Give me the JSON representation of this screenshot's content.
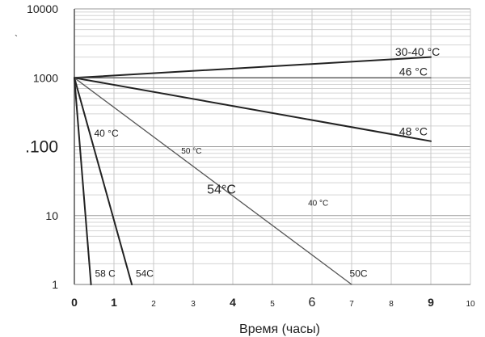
{
  "chart_data": {
    "type": "line",
    "xlabel": "Время (часы)",
    "x_ticks": [
      {
        "value": 0,
        "label": "0",
        "style": "bold"
      },
      {
        "value": 1,
        "label": "1",
        "style": "bold"
      },
      {
        "value": 2,
        "label": "2",
        "style": "small"
      },
      {
        "value": 3,
        "label": "3",
        "style": "small"
      },
      {
        "value": 4,
        "label": "4",
        "style": "bold"
      },
      {
        "value": 5,
        "label": "5",
        "style": "small"
      },
      {
        "value": 6,
        "label": "6",
        "style": "large"
      },
      {
        "value": 7,
        "label": "7",
        "style": "small"
      },
      {
        "value": 8,
        "label": "8",
        "style": "small"
      },
      {
        "value": 9,
        "label": "9",
        "style": "bold"
      },
      {
        "value": 10,
        "label": "10",
        "style": "small"
      }
    ],
    "y_scale": "log",
    "y_ticks": [
      {
        "value": 1,
        "label": "1",
        "style": "small"
      },
      {
        "value": 10,
        "label": "10",
        "style": "small"
      },
      {
        "value": 100,
        "label": ".100",
        "style": "large"
      },
      {
        "value": 1000,
        "label": "1000",
        "style": "small"
      },
      {
        "value": 10000,
        "label": "10000",
        "style": "small"
      }
    ],
    "xlim": [
      0,
      10
    ],
    "ylim": [
      1,
      10000
    ],
    "grid": true,
    "series": [
      {
        "name": "30-40 °C",
        "points": [
          [
            0,
            1000
          ],
          [
            9,
            2000
          ]
        ],
        "color": "#222222",
        "width": 2
      },
      {
        "name": "46 °C",
        "points": [
          [
            0,
            1000
          ],
          [
            9,
            1000
          ]
        ],
        "color": "#555555",
        "width": 1.3
      },
      {
        "name": "48 °C",
        "points": [
          [
            0,
            1000
          ],
          [
            9,
            120
          ]
        ],
        "color": "#222222",
        "width": 2
      },
      {
        "name": "50C",
        "points": [
          [
            0,
            1000
          ],
          [
            7,
            1
          ]
        ],
        "color": "#555555",
        "width": 1.3
      },
      {
        "name": "54C",
        "points": [
          [
            0,
            1000
          ],
          [
            1.45,
            1
          ]
        ],
        "color": "#222222",
        "width": 2
      },
      {
        "name": "58 C",
        "points": [
          [
            0,
            1000
          ],
          [
            0.42,
            1
          ]
        ],
        "color": "#222222",
        "width": 2
      }
    ],
    "annotations": [
      {
        "text": "30-40 °C",
        "at": [
          8.1,
          2100
        ],
        "size": "medium"
      },
      {
        "text": "46 °C",
        "at": [
          8.2,
          1080
        ],
        "size": "medium"
      },
      {
        "text": "48 °C",
        "at": [
          8.2,
          145
        ],
        "size": "medium"
      },
      {
        "text": "40 °C",
        "at": [
          0.5,
          140
        ],
        "size": "small"
      },
      {
        "text": "50 °C",
        "at": [
          2.7,
          80
        ],
        "size": "tiny"
      },
      {
        "text": "54°C",
        "at": [
          3.35,
          21
        ],
        "size": "large"
      },
      {
        "text": "40 °C",
        "at": [
          5.9,
          14
        ],
        "size": "tiny"
      },
      {
        "text": "58 C",
        "at": [
          0.52,
          1.3
        ],
        "size": "small"
      },
      {
        "text": "54C",
        "at": [
          1.55,
          1.3
        ],
        "size": "small"
      },
      {
        "text": "50C",
        "at": [
          6.95,
          1.3
        ],
        "size": "small"
      }
    ]
  },
  "stray_mark": "`"
}
